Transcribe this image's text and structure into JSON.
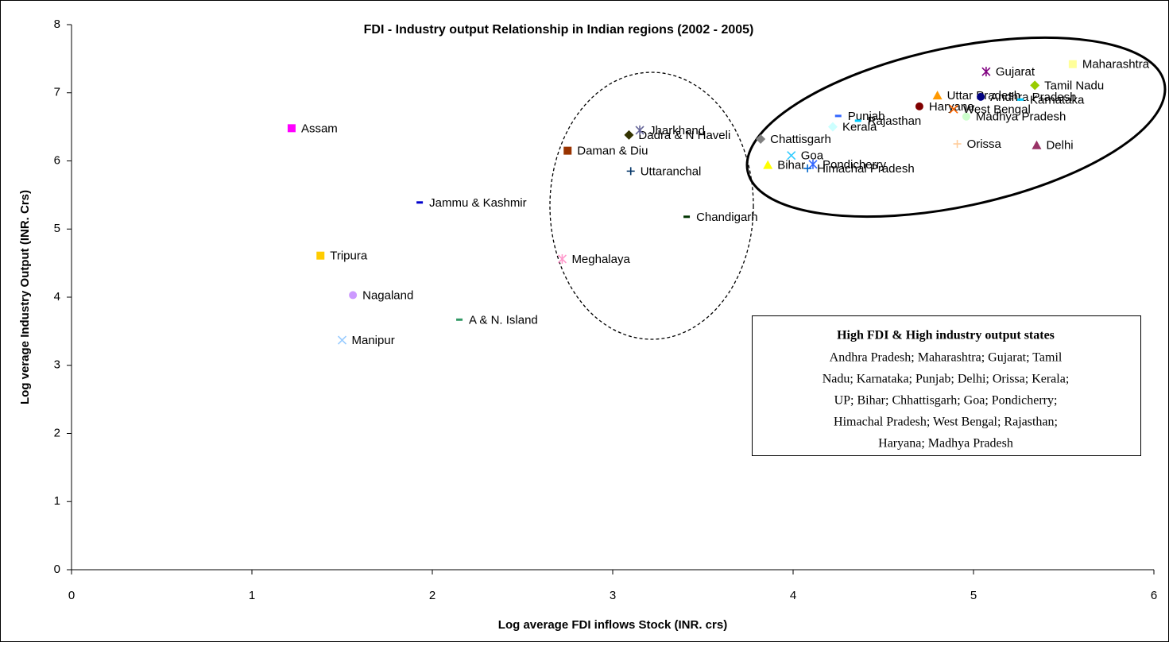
{
  "chart_data": {
    "type": "scatter",
    "title": "FDI - Industry output Relationship in Indian regions (2002 - 2005)",
    "x_label": "Log average FDI inflows Stock (INR. crs)",
    "y_label": "Log verage Industry Output (INR. Crs)",
    "xlim": [
      0,
      6
    ],
    "xticks": [
      0,
      1,
      2,
      3,
      4,
      5,
      6
    ],
    "ylim": [
      0,
      8
    ],
    "yticks": [
      0,
      1,
      2,
      3,
      4,
      5,
      6,
      7,
      8
    ],
    "grid": false,
    "series": [
      {
        "name": "Assam",
        "color": "#ff00ff",
        "marker": "square",
        "x": [
          1.22
        ],
        "values": [
          6.48
        ]
      },
      {
        "name": "Jammu & Kashmir",
        "color": "#0000cc",
        "marker": "dash",
        "x": [
          1.93
        ],
        "values": [
          5.39
        ]
      },
      {
        "name": "Tripura",
        "color": "#ffcc00",
        "marker": "square",
        "x": [
          1.38
        ],
        "values": [
          4.61
        ]
      },
      {
        "name": "Nagaland",
        "color": "#cc99ff",
        "marker": "circle",
        "x": [
          1.56
        ],
        "values": [
          4.03
        ]
      },
      {
        "name": "Manipur",
        "color": "#99ccff",
        "marker": "x",
        "x": [
          1.5
        ],
        "values": [
          3.37
        ]
      },
      {
        "name": "A & N. Island",
        "color": "#339966",
        "marker": "dash",
        "x": [
          2.15
        ],
        "values": [
          3.67
        ]
      },
      {
        "name": "Meghalaya",
        "color": "#ff99cc",
        "marker": "star",
        "x": [
          2.72
        ],
        "values": [
          4.56
        ]
      },
      {
        "name": "Daman & Diu",
        "color": "#993300",
        "marker": "square",
        "x": [
          2.75
        ],
        "values": [
          6.15
        ]
      },
      {
        "name": "Dadra & N Haveli",
        "color": "#333300",
        "marker": "diamond",
        "x": [
          3.09
        ],
        "values": [
          6.38
        ]
      },
      {
        "name": "Jharkhand",
        "color": "#666699",
        "marker": "star",
        "x": [
          3.15
        ],
        "values": [
          6.45
        ]
      },
      {
        "name": "Uttaranchal",
        "color": "#003366",
        "marker": "plus",
        "x": [
          3.1
        ],
        "values": [
          5.85
        ]
      },
      {
        "name": "Chandigarh",
        "color": "#003300",
        "marker": "dash",
        "x": [
          3.41
        ],
        "values": [
          5.18
        ]
      },
      {
        "name": "Chattisgarh",
        "color": "#808080",
        "marker": "diamond",
        "x": [
          3.82
        ],
        "values": [
          6.32
        ]
      },
      {
        "name": "Bihar",
        "color": "#ffff00",
        "marker": "triangle",
        "x": [
          3.86
        ],
        "values": [
          5.94
        ]
      },
      {
        "name": "Goa",
        "color": "#33ccff",
        "marker": "x",
        "x": [
          3.99
        ],
        "values": [
          6.08
        ]
      },
      {
        "name": "Pondicherry",
        "color": "#3366ff",
        "marker": "star",
        "x": [
          4.11
        ],
        "values": [
          5.95
        ]
      },
      {
        "name": "Himachal Pradesh",
        "color": "#0066cc",
        "marker": "plus",
        "x": [
          4.08
        ],
        "values": [
          5.89
        ]
      },
      {
        "name": "Punjab",
        "color": "#3366ff",
        "marker": "dash",
        "x": [
          4.25
        ],
        "values": [
          6.66
        ]
      },
      {
        "name": "Kerala",
        "color": "#ccffff",
        "marker": "diamond",
        "x": [
          4.22
        ],
        "values": [
          6.5
        ]
      },
      {
        "name": "Rajasthan",
        "color": "#00ccff",
        "marker": "dash",
        "x": [
          4.36
        ],
        "values": [
          6.59
        ]
      },
      {
        "name": "Haryana",
        "color": "#800000",
        "marker": "circle",
        "x": [
          4.7
        ],
        "values": [
          6.8
        ]
      },
      {
        "name": "Uttar Pradesh",
        "color": "#ff9900",
        "marker": "triangle",
        "x": [
          4.8
        ],
        "values": [
          6.96
        ]
      },
      {
        "name": "West Bengal",
        "color": "#ff6600",
        "marker": "x",
        "x": [
          4.89
        ],
        "values": [
          6.76
        ]
      },
      {
        "name": "Madhya Pradesh",
        "color": "#ccffcc",
        "marker": "circle",
        "x": [
          4.96
        ],
        "values": [
          6.65
        ]
      },
      {
        "name": "Orissa",
        "color": "#ffcc99",
        "marker": "plus",
        "x": [
          4.91
        ],
        "values": [
          6.25
        ]
      },
      {
        "name": "Andhra Pradesh",
        "color": "#000080",
        "marker": "circle",
        "x": [
          5.04
        ],
        "values": [
          6.94
        ]
      },
      {
        "name": "Gujarat",
        "color": "#800080",
        "marker": "star",
        "x": [
          5.07
        ],
        "values": [
          7.31
        ]
      },
      {
        "name": "Karnataka",
        "color": "#00ccff",
        "marker": "dash",
        "x": [
          5.26
        ],
        "values": [
          6.9
        ]
      },
      {
        "name": "Tamil Nadu",
        "color": "#99cc00",
        "marker": "diamond",
        "x": [
          5.34
        ],
        "values": [
          7.11
        ]
      },
      {
        "name": "Delhi",
        "color": "#993366",
        "marker": "triangle",
        "x": [
          5.35
        ],
        "values": [
          6.23
        ]
      },
      {
        "name": "Maharashtra",
        "color": "#ffff99",
        "marker": "square",
        "x": [
          5.55
        ],
        "values": [
          7.42
        ]
      }
    ],
    "annotation_box": {
      "title": "High FDI & High industry output states",
      "lines": [
        "Andhra Pradesh; Maharashtra; Gujarat; Tamil",
        "Nadu; Karnataka; Punjab; Delhi; Orissa; Kerala;",
        "UP; Bihar; Chhattisgarh; Goa; Pondicherry;",
        "Himachal Pradesh; West Bengal; Rajasthan;",
        "Haryana; Madhya Pradesh"
      ]
    }
  }
}
